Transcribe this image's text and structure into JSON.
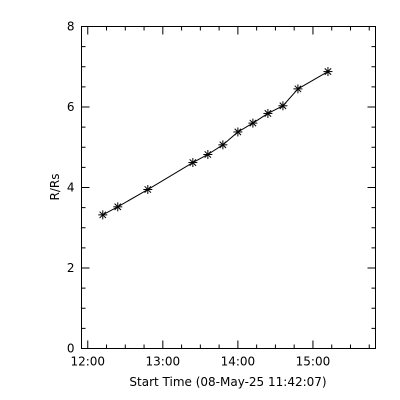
{
  "chart_data": {
    "type": "line",
    "title": "",
    "xlabel": "Start Time (08-May-25 11:42:07)",
    "ylabel": "R/Rs",
    "x_ticks": [
      "12:00",
      "13:00",
      "14:00",
      "15:00"
    ],
    "y_ticks": [
      "0",
      "2",
      "4",
      "6",
      "8"
    ],
    "xlim": [
      "11:55",
      "15:50"
    ],
    "ylim": [
      0,
      8
    ],
    "grid": false,
    "marker": "asterisk",
    "series": [
      {
        "x": [
          "12:12",
          "12:24",
          "12:48",
          "13:24",
          "13:36",
          "13:48",
          "14:00",
          "14:12",
          "14:24",
          "14:36",
          "14:48",
          "15:12"
        ],
        "values": [
          3.32,
          3.52,
          3.95,
          4.62,
          4.82,
          5.06,
          5.38,
          5.6,
          5.84,
          6.03,
          6.45,
          6.88
        ]
      }
    ]
  }
}
